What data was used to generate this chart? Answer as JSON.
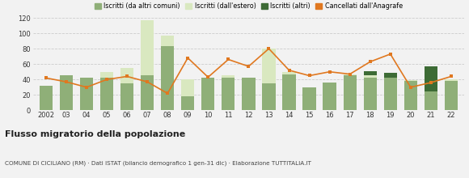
{
  "years": [
    "2002",
    "03",
    "04",
    "05",
    "06",
    "07",
    "08",
    "09",
    "10",
    "11",
    "12",
    "13",
    "14",
    "15",
    "16",
    "17",
    "18",
    "19",
    "20",
    "21",
    "22"
  ],
  "iscritti_altri_comuni": [
    32,
    45,
    42,
    42,
    35,
    45,
    83,
    18,
    42,
    42,
    42,
    35,
    47,
    30,
    36,
    46,
    42,
    42,
    38,
    25,
    38
  ],
  "iscritti_estero": [
    0,
    0,
    0,
    8,
    20,
    72,
    14,
    22,
    0,
    3,
    0,
    45,
    3,
    0,
    0,
    1,
    3,
    0,
    1,
    0,
    2
  ],
  "iscritti_altri": [
    0,
    0,
    0,
    0,
    0,
    0,
    0,
    0,
    0,
    0,
    0,
    0,
    0,
    0,
    0,
    0,
    6,
    7,
    0,
    32,
    0
  ],
  "cancellati": [
    42,
    37,
    30,
    40,
    44,
    37,
    22,
    68,
    43,
    66,
    57,
    80,
    52,
    45,
    50,
    47,
    63,
    73,
    30,
    36,
    44
  ],
  "color_altri_comuni": "#8faf78",
  "color_estero": "#d9e8c0",
  "color_altri": "#3d6b35",
  "color_cancellati": "#e07820",
  "bg_color": "#f2f2f2",
  "ylim": [
    0,
    120
  ],
  "yticks": [
    0,
    20,
    40,
    60,
    80,
    100,
    120
  ],
  "title": "Flusso migratorio della popolazione",
  "subtitle": "COMUNE DI CICILIANO (RM) · Dati ISTAT (bilancio demografico 1 gen-31 dic) · Elaborazione TUTTITALIA.IT",
  "legend_labels": [
    "Iscritti (da altri comuni)",
    "Iscritti (dall'estero)",
    "Iscritti (altri)",
    "Cancellati dall'Anagrafe"
  ]
}
